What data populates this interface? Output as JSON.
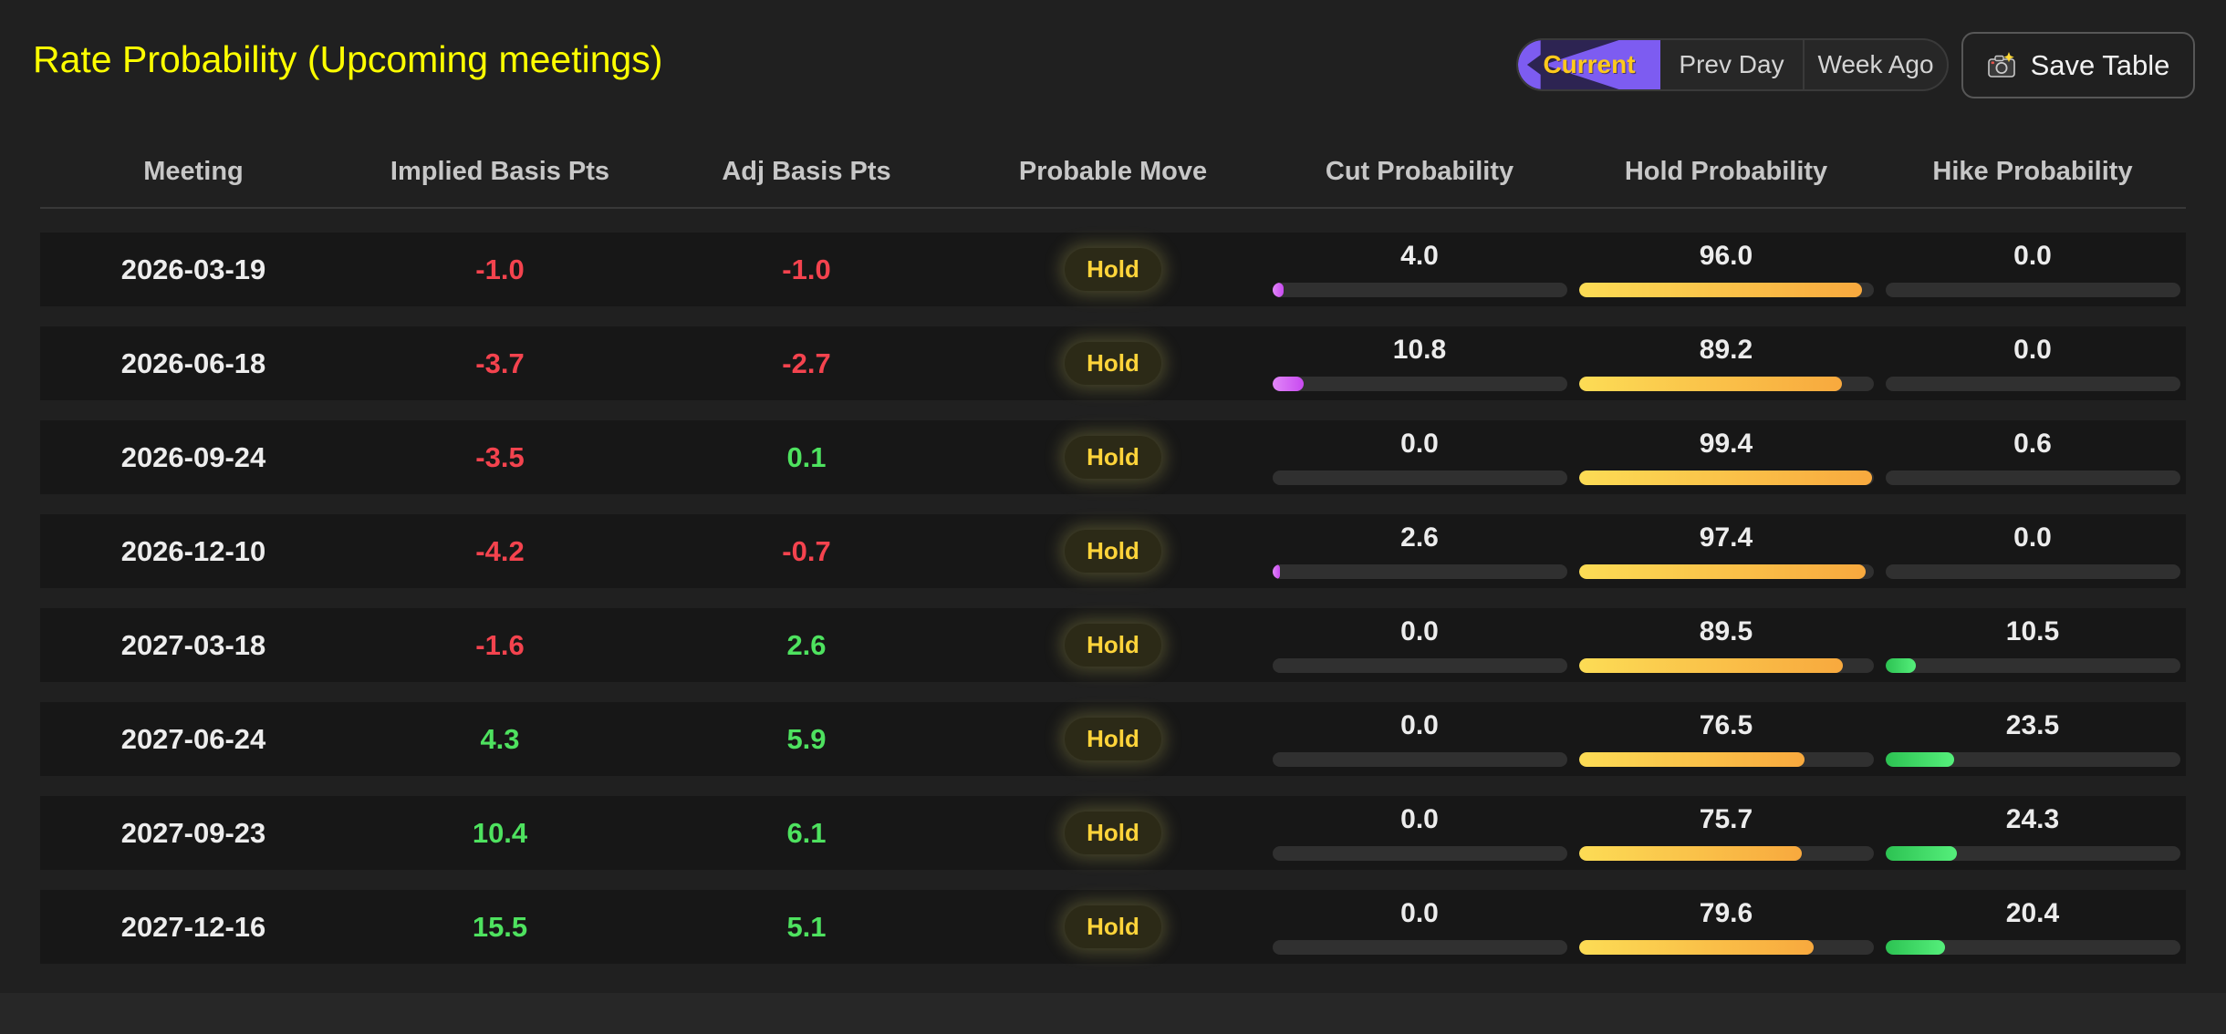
{
  "title": "Rate Probability (Upcoming meetings)",
  "toolbar": {
    "tabs": [
      {
        "label": "Current",
        "active": true
      },
      {
        "label": "Prev Day",
        "active": false
      },
      {
        "label": "Week Ago",
        "active": false
      }
    ],
    "save_button": {
      "label": "Save Table",
      "icon": "camera-flash-icon"
    }
  },
  "table": {
    "columns": [
      "Meeting",
      "Implied Basis Pts",
      "Adj Basis Pts",
      "Probable Move",
      "Cut Probability",
      "Hold Probability",
      "Hike Probability"
    ],
    "rows": [
      {
        "meeting": "2026-03-19",
        "implied": "-1.0",
        "adj": "-1.0",
        "move": "Hold",
        "cut": 4.0,
        "hold": 96.0,
        "hike": 0.0
      },
      {
        "meeting": "2026-06-18",
        "implied": "-3.7",
        "adj": "-2.7",
        "move": "Hold",
        "cut": 10.8,
        "hold": 89.2,
        "hike": 0.0
      },
      {
        "meeting": "2026-09-24",
        "implied": "-3.5",
        "adj": "0.1",
        "move": "Hold",
        "cut": 0.0,
        "hold": 99.4,
        "hike": 0.6
      },
      {
        "meeting": "2026-12-10",
        "implied": "-4.2",
        "adj": "-0.7",
        "move": "Hold",
        "cut": 2.6,
        "hold": 97.4,
        "hike": 0.0
      },
      {
        "meeting": "2027-03-18",
        "implied": "-1.6",
        "adj": "2.6",
        "move": "Hold",
        "cut": 0.0,
        "hold": 89.5,
        "hike": 10.5
      },
      {
        "meeting": "2027-06-24",
        "implied": "4.3",
        "adj": "5.9",
        "move": "Hold",
        "cut": 0.0,
        "hold": 76.5,
        "hike": 23.5
      },
      {
        "meeting": "2027-09-23",
        "implied": "10.4",
        "adj": "6.1",
        "move": "Hold",
        "cut": 0.0,
        "hold": 75.7,
        "hike": 24.3
      },
      {
        "meeting": "2027-12-16",
        "implied": "15.5",
        "adj": "5.1",
        "move": "Hold",
        "cut": 0.0,
        "hold": 79.6,
        "hike": 20.4
      }
    ]
  },
  "colors": {
    "title_yellow": "#feff00",
    "positive_green": "#4ee25f",
    "negative_red": "#f4434e",
    "badge_yellow": "#ffd43a",
    "accent_purple": "#7d5cf1",
    "accent_purple_dark": "#2d2452",
    "active_tab_text": "#fdc91c",
    "cut_gradient": [
      "#e187f8",
      "#c84af0"
    ],
    "hold_gradient": [
      "#fcdc55",
      "#f8a93e"
    ],
    "hike_gradient": [
      "#2cc252",
      "#55ef7b"
    ]
  }
}
